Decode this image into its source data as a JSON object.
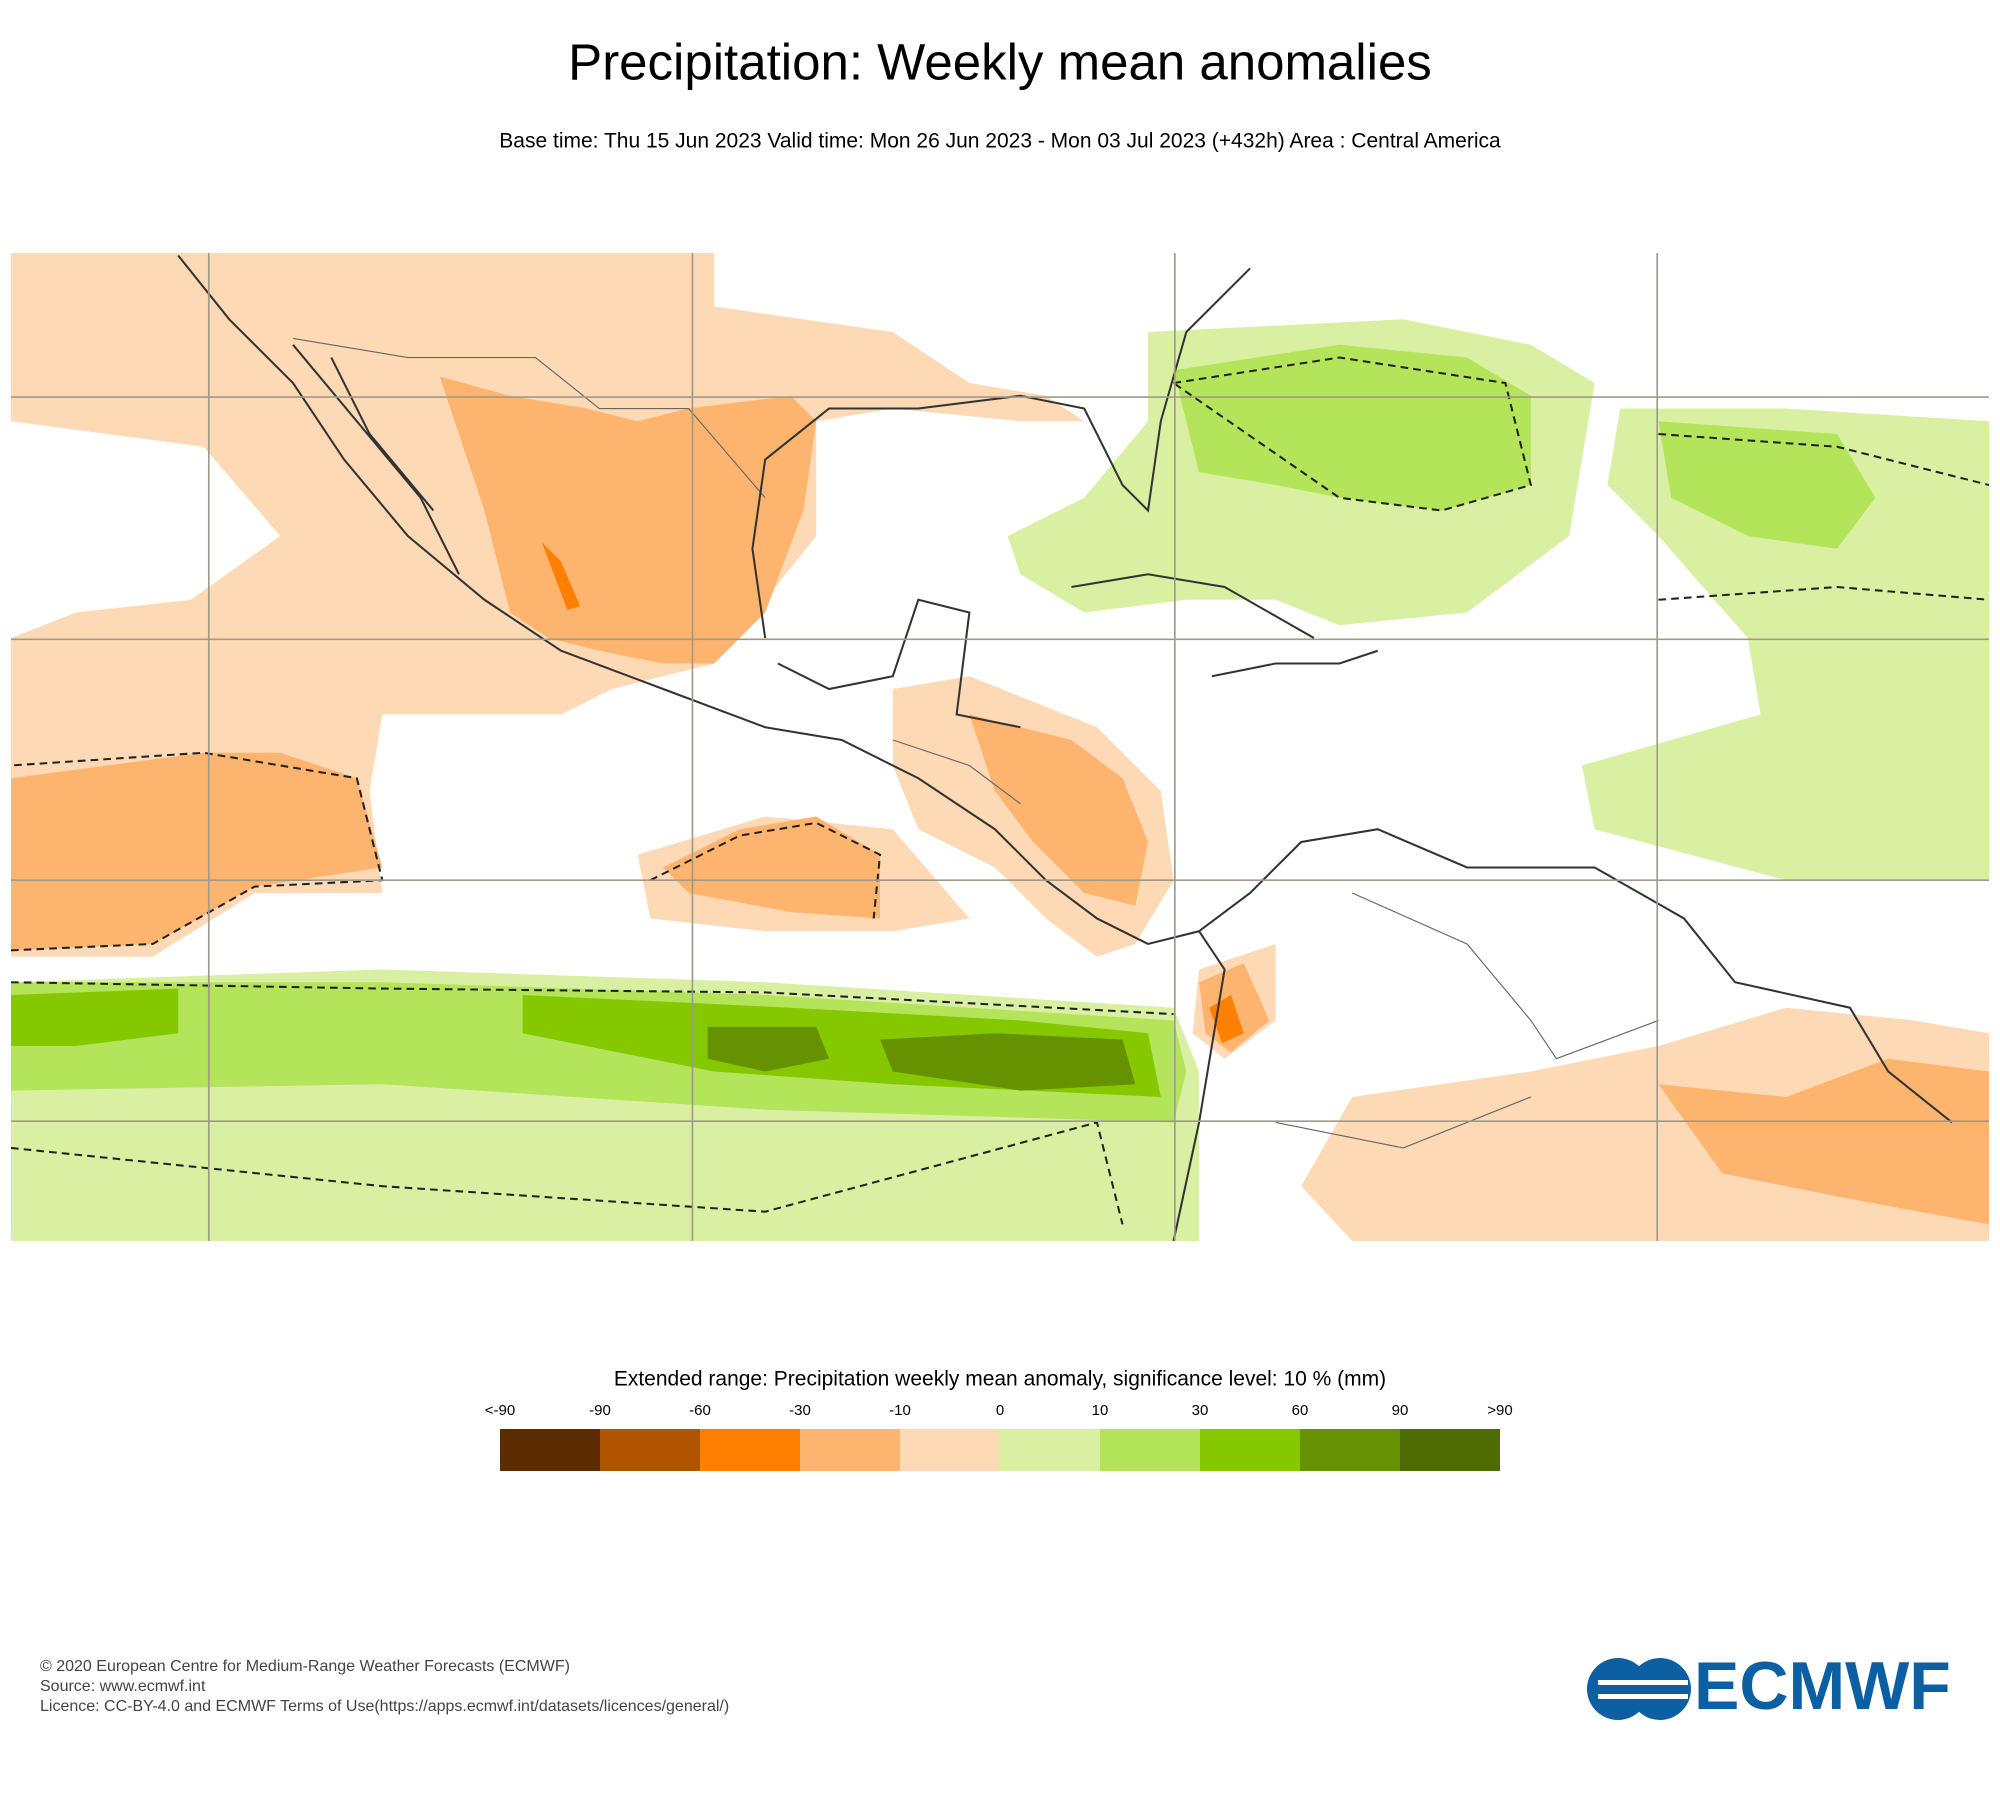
{
  "header": {
    "title": "Precipitation: Weekly mean anomalies",
    "subtitle": "Base time: Thu 15 Jun 2023 Valid time: Mon 26 Jun 2023 - Mon 03 Jul 2023 (+432h) Area : Central America"
  },
  "legend": {
    "title": "Extended range: Precipitation weekly mean anomaly, significance level: 10 % (mm)",
    "labels": [
      "<-90",
      "-90",
      "-60",
      "-30",
      "-10",
      "0",
      "10",
      "30",
      "60",
      "90",
      ">90"
    ],
    "colors": [
      "#5c2c00",
      "#b05400",
      "#ff8000",
      "#fdb46e",
      "#fdd9b5",
      "#d9f0a3",
      "#b3e45a",
      "#85c800",
      "#669100",
      "#4d6b00"
    ]
  },
  "footer": {
    "lines": [
      "© 2020 European Centre for Medium-Range Weather Forecasts (ECMWF)",
      "Source: www.ecmwf.int",
      "Licence: CC-BY-4.0 and ECMWF Terms of Use(https://apps.ecmwf.int/datasets/licences/general/)"
    ]
  },
  "logo": {
    "text": "ECMWF"
  }
}
